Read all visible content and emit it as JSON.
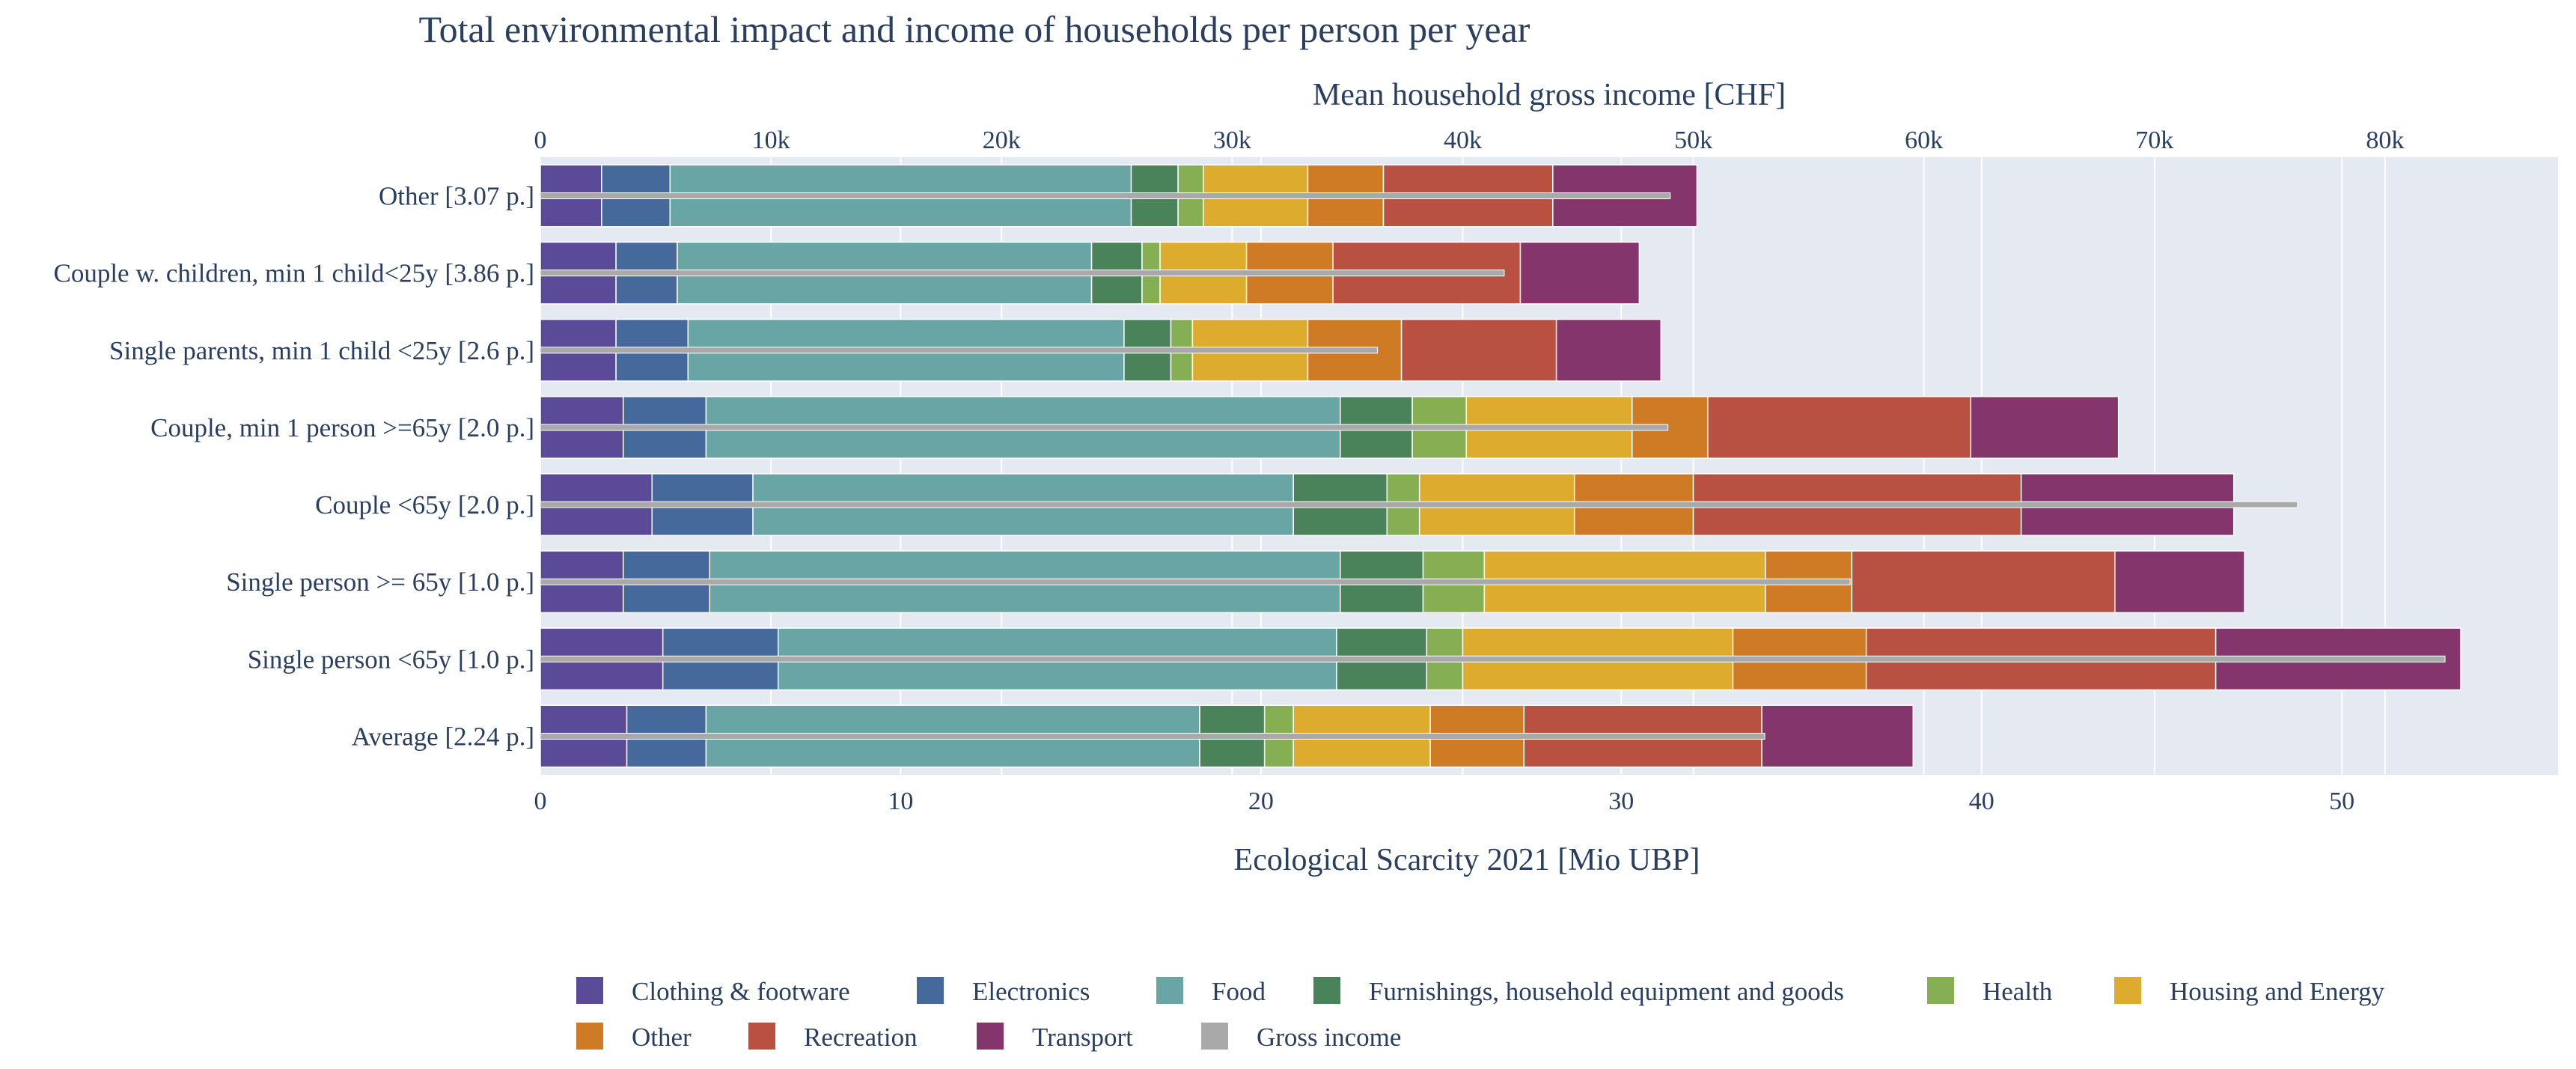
{
  "chart_data": {
    "type": "bar",
    "orientation": "horizontal",
    "barmode": "stack",
    "title": "Total environmental impact  and income of households per person per year",
    "xlabel": "Ecological Scarcity 2021 [Mio UBP]",
    "x2label": "Mean household gross income [CHF]",
    "xlim": [
      0,
      56
    ],
    "x2lim": [
      0,
      87500
    ],
    "xticks": [
      0,
      10,
      20,
      30,
      40,
      50
    ],
    "xtick_labels": [
      "0",
      "10",
      "20",
      "30",
      "40",
      "50"
    ],
    "x2ticks": [
      0,
      10000,
      20000,
      30000,
      40000,
      50000,
      60000,
      70000,
      80000
    ],
    "x2tick_labels": [
      "0",
      "10k",
      "20k",
      "30k",
      "40k",
      "50k",
      "60k",
      "70k",
      "80k"
    ],
    "grid": true,
    "legend_position": "bottom",
    "categories": [
      "Other [3.07 p.]",
      "Couple w. children, min 1 child<25y [3.86 p.]",
      "Single parents, min 1 child <25y [2.6 p.]",
      "Couple, min 1 person >=65y [2.0 p.]",
      "Couple <65y [2.0 p.]",
      "Single person >= 65y [1.0 p.]",
      "Single person <65y [1.0 p.]",
      "Average [2.24 p.]"
    ],
    "series": [
      {
        "name": "Clothing & footware",
        "color": "#5b4a98",
        "values": [
          1.7,
          2.1,
          2.1,
          2.3,
          3.1,
          2.3,
          3.4,
          2.4
        ]
      },
      {
        "name": "Electronics",
        "color": "#44699a",
        "values": [
          1.9,
          1.7,
          2.0,
          2.3,
          2.8,
          2.4,
          3.2,
          2.2
        ]
      },
      {
        "name": "Food",
        "color": "#69a5a4",
        "values": [
          12.8,
          11.5,
          12.1,
          17.6,
          15.0,
          17.5,
          15.5,
          13.7
        ]
      },
      {
        "name": "Furnishings, household equipment and goods",
        "color": "#4a835a",
        "values": [
          1.3,
          1.4,
          1.3,
          2.0,
          2.6,
          2.3,
          2.5,
          1.8
        ]
      },
      {
        "name": "Health",
        "color": "#86ae53",
        "values": [
          0.7,
          0.5,
          0.6,
          1.5,
          0.9,
          1.7,
          1.0,
          0.8
        ]
      },
      {
        "name": "Housing and Energy",
        "color": "#ddac2f",
        "values": [
          2.9,
          2.4,
          3.2,
          4.6,
          4.3,
          7.8,
          7.5,
          3.8
        ]
      },
      {
        "name": "Other",
        "color": "#cf7b25",
        "values": [
          2.1,
          2.4,
          2.6,
          2.1,
          3.3,
          2.4,
          3.7,
          2.6
        ]
      },
      {
        "name": "Recreation",
        "color": "#b85142",
        "values": [
          4.7,
          5.2,
          4.3,
          7.3,
          9.1,
          7.3,
          9.7,
          6.6
        ]
      },
      {
        "name": "Transport",
        "color": "#84366c",
        "values": [
          4.0,
          3.3,
          2.9,
          4.1,
          5.9,
          3.6,
          6.8,
          4.2
        ]
      }
    ],
    "overlay_series": {
      "name": "Gross income",
      "color": "#a9a9a9",
      "values": [
        49000,
        41800,
        36300,
        48900,
        76200,
        56800,
        82600,
        53100
      ]
    }
  }
}
